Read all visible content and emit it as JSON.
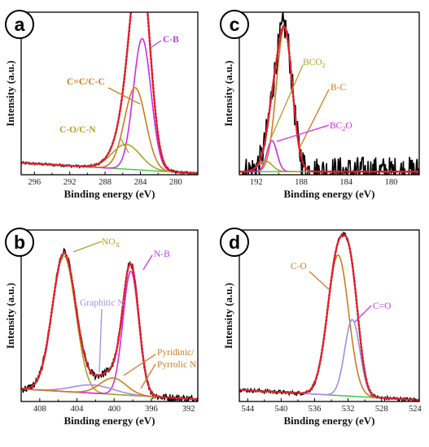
{
  "colors": {
    "raw": "#000000",
    "fit": "#dd1f2a",
    "fit_points": "#e03a2e",
    "background": "#3cc43c",
    "olive": "#aaa326",
    "magenta": "#d12be2",
    "orange": "#d07a1e",
    "lavender": "#9f8ee6",
    "violet": "#b63fe0"
  },
  "chart_data": [
    {
      "id": "a",
      "type": "line",
      "panel_label": "a",
      "xlabel": "Binding energy (eV)",
      "ylabel": "Intensity (a.u.)",
      "xlim": [
        297.5,
        277.5
      ],
      "x_reversed": true,
      "xticks": [
        296,
        292,
        288,
        284,
        280
      ],
      "ylim": [
        0,
        1.05
      ],
      "baseline": {
        "color": "background",
        "points": [
          [
            297,
            0.075
          ],
          [
            278,
            0.01
          ]
        ]
      },
      "components": [
        {
          "name": "C-B",
          "color": "magenta",
          "peaks": [
            {
              "center": 283.8,
              "height": 0.85,
              "width": 1.0
            }
          ]
        },
        {
          "name": "C=C/C-C",
          "color": "orange",
          "peaks": [
            {
              "center": 284.6,
              "height": 0.53,
              "width": 1.2
            }
          ]
        },
        {
          "name": "C-O/C-N",
          "color": "olive",
          "peaks": [
            {
              "center": 285.6,
              "height": 0.16,
              "width": 1.6
            }
          ]
        }
      ],
      "envelope": {
        "color": "fit",
        "noise": 0.008
      },
      "annotations": [
        {
          "text": "C-B",
          "color": "violet",
          "bold": true
        },
        {
          "text": "C=C/C-C",
          "color": "orange",
          "bold": true
        },
        {
          "text": "C-O/C-N",
          "color": "olive",
          "bold": true
        }
      ]
    },
    {
      "id": "c",
      "type": "line",
      "panel_label": "c",
      "xlabel": "Binding energy (eV)",
      "ylabel": "Intensity (a.u.)",
      "xlim": [
        193.5,
        177.5
      ],
      "x_reversed": true,
      "xticks": [
        192,
        188,
        184,
        180
      ],
      "ylim": [
        0,
        1.05
      ],
      "baseline": {
        "color": "background",
        "points": [
          [
            193,
            0.02
          ],
          [
            178,
            0.02
          ]
        ]
      },
      "components": [
        {
          "name": "B-C",
          "color": "orange",
          "peaks": [
            {
              "center": 189.5,
              "height": 0.93,
              "width": 0.7
            }
          ]
        },
        {
          "name": "BC2O",
          "color": "magenta",
          "peaks": [
            {
              "center": 190.6,
              "height": 0.2,
              "width": 0.45
            }
          ]
        },
        {
          "name": "BCO2",
          "color": "olive",
          "peaks": [
            {
              "center": 191.2,
              "height": 0.07,
              "width": 0.6
            }
          ]
        }
      ],
      "envelope": {
        "color": "fit",
        "noise": 0.1
      },
      "annotations": [
        {
          "text": "BCO",
          "sub": "2",
          "color": "olive",
          "bold": false
        },
        {
          "text": "B-C",
          "color": "orange",
          "bold": false
        },
        {
          "text": "BC",
          "sub": "2",
          "after": "O",
          "color": "magenta",
          "bold": false
        }
      ]
    },
    {
      "id": "b",
      "type": "line",
      "panel_label": "b",
      "xlabel": "Binding energy (eV)",
      "ylabel": "Intensity (a.u.)",
      "xlim": [
        410,
        391
      ],
      "x_reversed": true,
      "xticks": [
        408,
        404,
        400,
        396,
        392
      ],
      "ylim": [
        0,
        1.05
      ],
      "baseline": {
        "color": "background",
        "points": [
          [
            409.5,
            0.075
          ],
          [
            391.5,
            0.015
          ]
        ]
      },
      "components": [
        {
          "name": "NOx",
          "color": "olive",
          "peaks": [
            {
              "center": 405.4,
              "height": 0.83,
              "width": 1.25
            }
          ]
        },
        {
          "name": "N-B",
          "color": "magenta",
          "peaks": [
            {
              "center": 398.2,
              "height": 0.76,
              "width": 0.85
            }
          ]
        },
        {
          "name": "Graphitic N",
          "color": "lavender",
          "peaks": [
            {
              "center": 402.3,
              "height": 0.05,
              "width": 2.2
            }
          ]
        },
        {
          "name": "Pyridinic/ Pyrrolic N",
          "color": "orange",
          "peaks": [
            {
              "center": 400.1,
              "height": 0.1,
              "width": 1.4
            }
          ]
        }
      ],
      "envelope": {
        "color": "fit",
        "noise": 0.025
      },
      "annotations": [
        {
          "text": "NO",
          "sub": "X",
          "color": "olive",
          "bold": false
        },
        {
          "text": "N-B",
          "color": "violet",
          "bold": false
        },
        {
          "text": "Graphitic N",
          "color": "lavender",
          "bold": false
        },
        {
          "text": "Pyridinic/",
          "color": "orange",
          "bold": false
        },
        {
          "text": "Pyrrolic N",
          "color": "orange",
          "bold": false
        }
      ]
    },
    {
      "id": "d",
      "type": "line",
      "panel_label": "d",
      "xlabel": "Binding energy (eV)",
      "ylabel": "Intensity (a.u.)",
      "xlim": [
        545,
        523.5
      ],
      "x_reversed": true,
      "xticks": [
        544,
        540,
        536,
        532,
        528,
        524
      ],
      "ylim": [
        0,
        1.05
      ],
      "baseline": {
        "color": "background",
        "points": [
          [
            544.5,
            0.07
          ],
          [
            524,
            0.01
          ]
        ]
      },
      "components": [
        {
          "name": "C-O",
          "color": "orange",
          "peaks": [
            {
              "center": 533.2,
              "height": 0.86,
              "width": 1.25
            }
          ]
        },
        {
          "name": "C=O",
          "color": "lavender",
          "peaks": [
            {
              "center": 531.5,
              "height": 0.47,
              "width": 0.9
            }
          ]
        }
      ],
      "envelope": {
        "color": "fit",
        "noise": 0.012
      },
      "annotations": [
        {
          "text": "C-O",
          "color": "orange",
          "bold": false
        },
        {
          "text": "C=O",
          "color": "violet",
          "bold": false
        }
      ]
    }
  ]
}
